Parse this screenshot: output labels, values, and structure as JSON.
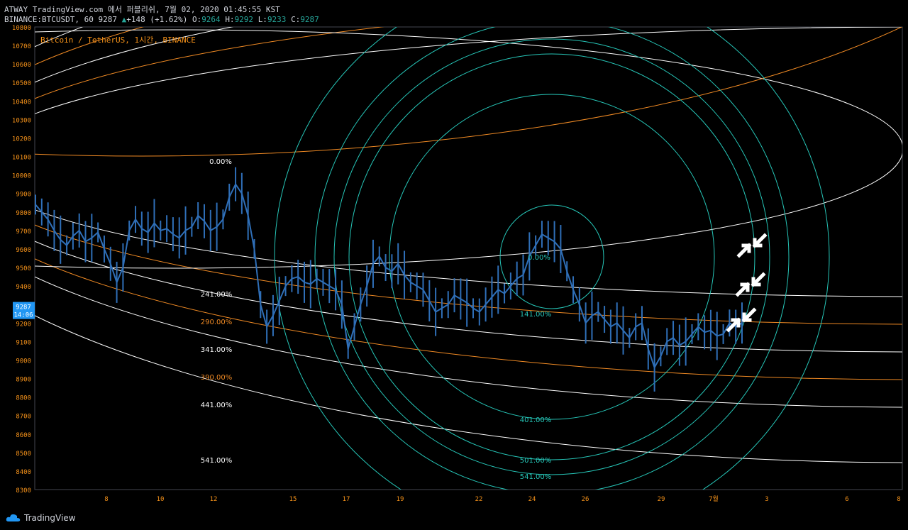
{
  "header": {
    "line1": "ATWAY TradingView.com 에서 퍼블리쉬, 7월 02, 2020 01:45:55 KST",
    "symbol": "BINANCE:BTCUSDT, 60",
    "last": "9287",
    "change": "+148 (+1.62%)",
    "o_label": "O:",
    "o": "9264",
    "h_label": "H:",
    "h": "9292",
    "l_label": "L:",
    "l": "9233",
    "c_label": "C:",
    "c": "9287"
  },
  "chart_title": "Bitcoin / TetherUS, 1시간, BINANCE",
  "footer": {
    "brand": "TradingView"
  },
  "colors": {
    "candle": "#2f6fb8",
    "teal": "#26c6b8",
    "orange": "#f08a24",
    "white_line": "#ffffff",
    "axis_text": "#f7931a",
    "price_badge": "#2196f3"
  },
  "chart_data": {
    "type": "line",
    "ylim": [
      8300,
      10800
    ],
    "y_ticks": [
      10800,
      10700,
      10600,
      10500,
      10400,
      10300,
      10200,
      10100,
      10000,
      9900,
      9800,
      9700,
      9600,
      9500,
      9400,
      9300,
      9200,
      9100,
      9000,
      8900,
      8800,
      8700,
      8600,
      8500,
      8400,
      8300
    ],
    "x_ticks": [
      "8",
      "10",
      "12",
      "15",
      "17",
      "19",
      "22",
      "24",
      "26",
      "29",
      "7월",
      "3",
      "6",
      "8"
    ],
    "current_price": "9287",
    "current_time": "14:06",
    "fib_arc_labels": [
      "0.00%",
      "241.00%",
      "290.00%",
      "341.00%",
      "390.00%",
      "441.00%",
      "541.00%"
    ],
    "fib_circle_labels": [
      "0.00%",
      "141.00%",
      "401.00%",
      "501.00%",
      "541.00%"
    ],
    "price_series": [
      9840,
      9800,
      9760,
      9700,
      9650,
      9620,
      9670,
      9700,
      9640,
      9660,
      9690,
      9600,
      9520,
      9420,
      9500,
      9700,
      9760,
      9710,
      9690,
      9740,
      9700,
      9710,
      9680,
      9660,
      9700,
      9720,
      9780,
      9750,
      9700,
      9720,
      9760,
      9880,
      9950,
      9900,
      9780,
      9600,
      9300,
      9180,
      9240,
      9320,
      9400,
      9440,
      9450,
      9420,
      9410,
      9440,
      9420,
      9400,
      9380,
      9300,
      9060,
      9180,
      9300,
      9400,
      9520,
      9560,
      9500,
      9480,
      9520,
      9460,
      9420,
      9400,
      9380,
      9320,
      9260,
      9280,
      9300,
      9350,
      9330,
      9310,
      9280,
      9260,
      9300,
      9340,
      9380,
      9360,
      9400,
      9440,
      9460,
      9560,
      9620,
      9680,
      9660,
      9640,
      9600,
      9480,
      9380,
      9300,
      9200,
      9240,
      9260,
      9220,
      9180,
      9200,
      9160,
      9120,
      9180,
      9200,
      9060,
      8960,
      9020,
      9100,
      9120,
      9080,
      9100,
      9140,
      9180,
      9150,
      9160,
      9130,
      9140,
      9200,
      9180,
      9200
    ]
  }
}
